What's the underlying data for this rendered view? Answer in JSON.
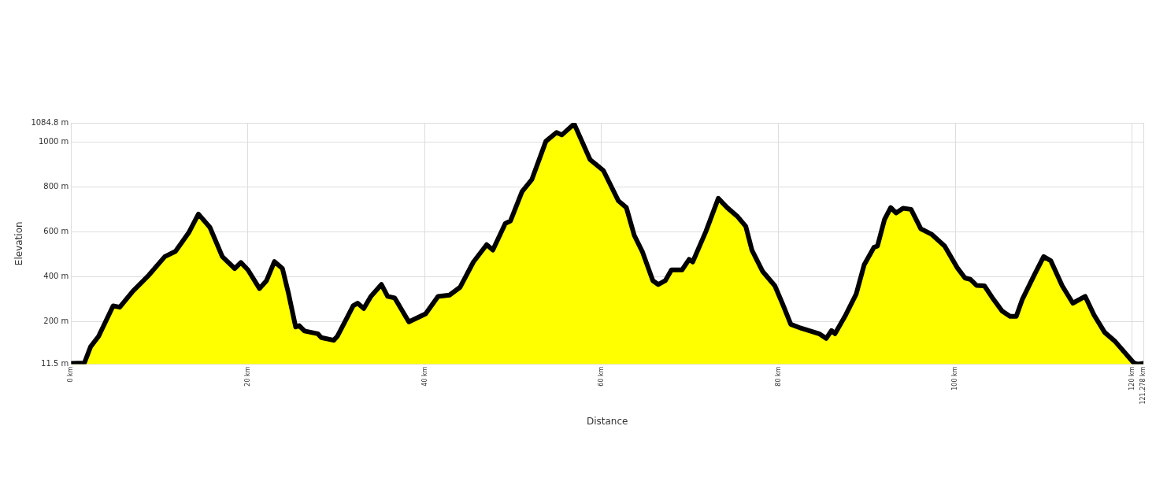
{
  "chart_data": {
    "type": "area",
    "xlabel": "Distance",
    "ylabel": "Elevation",
    "x": [
      0,
      1.5,
      2.2,
      3.1,
      4.75,
      5.5,
      7.0,
      8.8,
      10.6,
      11.8,
      13.3,
      14.4,
      15.7,
      17.1,
      18.5,
      19.2,
      20.0,
      21.3,
      22.1,
      23.0,
      23.9,
      24.6,
      25.4,
      25.8,
      26.4,
      27.9,
      28.3,
      29.7,
      30.1,
      31.2,
      31.9,
      32.4,
      33.1,
      33.9,
      35.1,
      35.8,
      36.6,
      38.2,
      40.1,
      41.5,
      42.8,
      44.0,
      45.5,
      47.0,
      47.7,
      49.1,
      49.7,
      51.0,
      52.1,
      53.7,
      54.9,
      55.5,
      56.9,
      58.7,
      60.2,
      61.9,
      62.8,
      63.7,
      64.6,
      65.8,
      66.4,
      67.2,
      67.9,
      69.1,
      69.9,
      70.3,
      71.8,
      73.2,
      74.2,
      75.4,
      76.3,
      77.0,
      78.2,
      79.6,
      80.5,
      81.4,
      82.6,
      84.6,
      85.4,
      86.0,
      86.4,
      87.6,
      88.8,
      89.7,
      90.8,
      91.2,
      92.0,
      92.7,
      93.3,
      94.1,
      95.0,
      96.1,
      97.3,
      98.8,
      100.2,
      101.1,
      101.7,
      102.4,
      103.3,
      104.2,
      105.3,
      106.2,
      106.9,
      107.6,
      109.0,
      110.0,
      110.8,
      112.1,
      113.3,
      114.7,
      115.7,
      116.9,
      118.1,
      120.2,
      120.6,
      121.278
    ],
    "series": [
      {
        "color": "#ffff00",
        "values": [
          15,
          17,
          89,
          135,
          271,
          265,
          337,
          408,
          490,
          513,
          596,
          679,
          620,
          490,
          437,
          464,
          431,
          348,
          383,
          468,
          437,
          324,
          177,
          183,
          159,
          147,
          130,
          118,
          135,
          218,
          271,
          283,
          259,
          313,
          366,
          313,
          306,
          200,
          236,
          313,
          319,
          354,
          466,
          543,
          519,
          637,
          649,
          779,
          832,
          1003,
          1042,
          1031,
          1080,
          921,
          873,
          738,
          708,
          584,
          513,
          383,
          366,
          383,
          431,
          431,
          478,
          466,
          602,
          749,
          708,
          667,
          625,
          519,
          425,
          360,
          277,
          189,
          171,
          147,
          126,
          161,
          147,
          230,
          324,
          454,
          531,
          537,
          655,
          708,
          684,
          705,
          700,
          614,
          590,
          537,
          442,
          395,
          389,
          362,
          360,
          307,
          248,
          224,
          224,
          301,
          413,
          490,
          472,
          360,
          283,
          313,
          230,
          153,
          112,
          17,
          12,
          15
        ]
      }
    ],
    "xlim": [
      0,
      121.278
    ],
    "xticks": [
      {
        "value": 0,
        "label": "0 km"
      },
      {
        "value": 20,
        "label": "20 km"
      },
      {
        "value": 40,
        "label": "40 km"
      },
      {
        "value": 60,
        "label": "60 km"
      },
      {
        "value": 80,
        "label": "80 km"
      },
      {
        "value": 100,
        "label": "100 km"
      },
      {
        "value": 120,
        "label": "120 km"
      },
      {
        "value": 121.278,
        "label": "121.278 km"
      }
    ],
    "ylim": [
      11.5,
      1084.8
    ],
    "yticks": [
      {
        "value": 11.5,
        "label": "11.5 m"
      },
      {
        "value": 200,
        "label": "200 m"
      },
      {
        "value": 400,
        "label": "400 m"
      },
      {
        "value": 600,
        "label": "600 m"
      },
      {
        "value": 800,
        "label": "800 m"
      },
      {
        "value": 1000,
        "label": "1000 m"
      },
      {
        "value": 1084.8,
        "label": "1084.8 m"
      }
    ],
    "grid": true,
    "legend": false,
    "marker": "none",
    "line_style": "solid"
  }
}
